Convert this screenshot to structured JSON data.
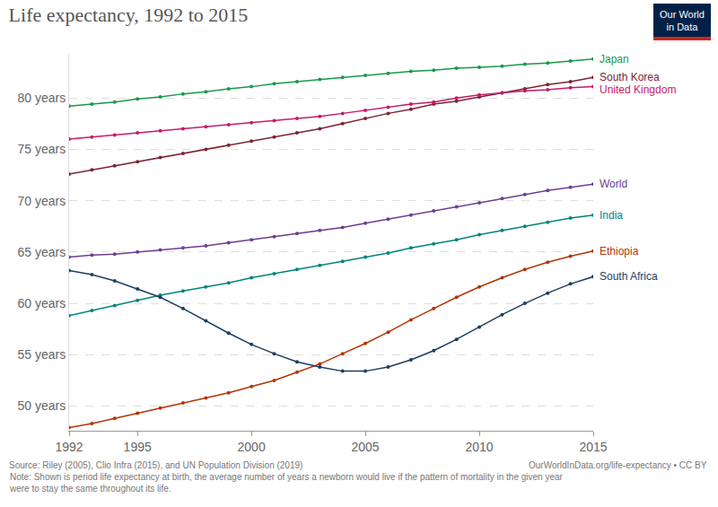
{
  "chart_data": {
    "type": "line",
    "title": "Life expectancy, 1992 to 2015",
    "logo": [
      "Our World",
      "in Data"
    ],
    "source": "Source: Riley (2005), Clio Infra (2015), and UN Population Division (2019)",
    "source_right": "OurWorldInData.org/life-expectancy • CC BY",
    "note": [
      "Note: Shown is period life expectancy at birth, the average number of years a newborn would live if the pattern of mortality in the given year",
      "were to stay the same throughout its life."
    ],
    "x": [
      1992,
      1993,
      1994,
      1995,
      1996,
      1997,
      1998,
      1999,
      2000,
      2001,
      2002,
      2003,
      2004,
      2005,
      2006,
      2007,
      2008,
      2009,
      2010,
      2011,
      2012,
      2013,
      2014,
      2015
    ],
    "xlim": [
      1992,
      2015
    ],
    "xticks": [
      1992,
      1995,
      2000,
      2005,
      2010,
      2015
    ],
    "ylim": [
      47.6,
      84.3
    ],
    "yticks": [
      {
        "value": 50,
        "label": "50 years"
      },
      {
        "value": 55,
        "label": "55 years"
      },
      {
        "value": 60,
        "label": "60 years"
      },
      {
        "value": 65,
        "label": "65 years"
      },
      {
        "value": 70,
        "label": "70 years"
      },
      {
        "value": 75,
        "label": "75 years"
      },
      {
        "value": 80,
        "label": "80 years"
      }
    ],
    "grid": true,
    "marker": "circle",
    "line_style": "solid",
    "series": [
      {
        "name": "Japan",
        "color": "#18994a",
        "values": [
          79.2,
          79.4,
          79.6,
          79.9,
          80.1,
          80.4,
          80.6,
          80.9,
          81.1,
          81.4,
          81.6,
          81.8,
          82.0,
          82.2,
          82.4,
          82.6,
          82.7,
          82.9,
          83.0,
          83.1,
          83.3,
          83.4,
          83.6,
          83.8
        ]
      },
      {
        "name": "South Korea",
        "color": "#7d2234",
        "values": [
          72.6,
          73.0,
          73.4,
          73.8,
          74.2,
          74.6,
          75.0,
          75.4,
          75.8,
          76.2,
          76.6,
          77.0,
          77.5,
          78.0,
          78.5,
          78.9,
          79.4,
          79.7,
          80.1,
          80.5,
          80.9,
          81.3,
          81.6,
          82.0
        ]
      },
      {
        "name": "United Kingdom",
        "color": "#c8196a",
        "values": [
          76.0,
          76.2,
          76.4,
          76.6,
          76.8,
          77.0,
          77.2,
          77.4,
          77.6,
          77.8,
          78.0,
          78.2,
          78.5,
          78.8,
          79.1,
          79.4,
          79.6,
          80.0,
          80.3,
          80.5,
          80.7,
          80.8,
          81.0,
          81.1
        ]
      },
      {
        "name": "World",
        "color": "#6d3e91",
        "values": [
          64.5,
          64.7,
          64.8,
          65.0,
          65.2,
          65.4,
          65.6,
          65.9,
          66.2,
          66.5,
          66.8,
          67.1,
          67.4,
          67.8,
          68.2,
          68.6,
          69.0,
          69.4,
          69.8,
          70.2,
          70.6,
          71.0,
          71.3,
          71.6
        ]
      },
      {
        "name": "India",
        "color": "#00847e",
        "values": [
          58.8,
          59.3,
          59.8,
          60.3,
          60.8,
          61.2,
          61.6,
          62.0,
          62.5,
          62.9,
          63.3,
          63.7,
          64.1,
          64.5,
          64.9,
          65.4,
          65.8,
          66.2,
          66.7,
          67.1,
          67.5,
          67.9,
          68.3,
          68.6
        ]
      },
      {
        "name": "Ethiopia",
        "color": "#b13507",
        "values": [
          47.9,
          48.3,
          48.8,
          49.3,
          49.8,
          50.3,
          50.8,
          51.3,
          51.9,
          52.5,
          53.3,
          54.1,
          55.1,
          56.1,
          57.2,
          58.4,
          59.5,
          60.6,
          61.6,
          62.5,
          63.3,
          64.0,
          64.6,
          65.1
        ]
      },
      {
        "name": "South Africa",
        "color": "#1d3d63",
        "values": [
          63.2,
          62.8,
          62.2,
          61.4,
          60.6,
          59.5,
          58.3,
          57.1,
          56.0,
          55.1,
          54.3,
          53.8,
          53.4,
          53.4,
          53.8,
          54.5,
          55.4,
          56.5,
          57.7,
          58.9,
          60.0,
          61.0,
          61.9,
          62.6
        ]
      }
    ]
  }
}
